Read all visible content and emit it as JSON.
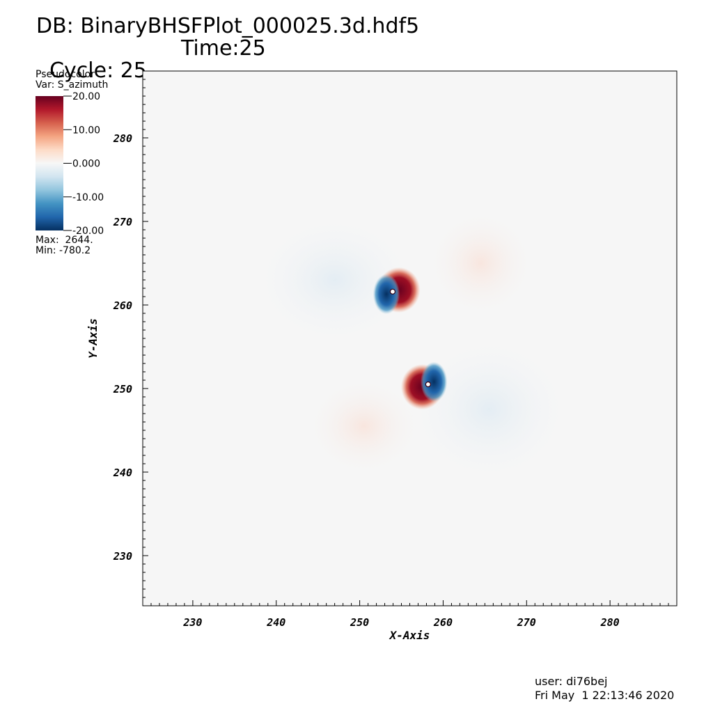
{
  "header": {
    "db_line": "DB: BinaryBHSFPlot_000025.3d.hdf5",
    "cycle": "Cycle: 25",
    "time": "Time:25"
  },
  "legend": {
    "plot_type": "Pseudocolor",
    "variable": "Var: S_azimuth",
    "max": "Max:  2644.",
    "min": "Min: -780.2",
    "colorbar_ticks": [
      "20.00",
      "10.00",
      "0.000",
      "-10.00",
      "-20.00"
    ],
    "colorbar_colors": [
      "#67001f",
      "#b2182b",
      "#d6604d",
      "#f4a582",
      "#fddbc7",
      "#f7f7f7",
      "#d1e5f0",
      "#92c5de",
      "#4393c3",
      "#2166ac",
      "#053061"
    ]
  },
  "chart_data": {
    "type": "heatmap",
    "xlabel": "X-Axis",
    "ylabel": "Y-Axis",
    "xlim": [
      224,
      288
    ],
    "ylim": [
      224,
      288
    ],
    "x_ticks": [
      230,
      240,
      250,
      260,
      270,
      280
    ],
    "y_ticks": [
      230,
      240,
      250,
      260,
      270,
      280
    ],
    "x_tick_labels": [
      "230",
      "240",
      "250",
      "260",
      "270",
      "280"
    ],
    "y_tick_labels": [
      "230",
      "240",
      "250",
      "260",
      "270",
      "280"
    ],
    "colorbar_range": [
      -20,
      20
    ],
    "grid": false,
    "background_color": "#f6f6f6",
    "features": [
      {
        "x": 254.7,
        "y": 261.8,
        "rx": 1.6,
        "ry": 1.7,
        "sign": "positive"
      },
      {
        "x": 253.2,
        "y": 261.3,
        "rx": 1.0,
        "ry": 1.5,
        "sign": "negative"
      },
      {
        "x": 257.5,
        "y": 250.2,
        "rx": 1.6,
        "ry": 1.7,
        "sign": "positive"
      },
      {
        "x": 258.9,
        "y": 250.8,
        "rx": 1.0,
        "ry": 1.5,
        "sign": "negative"
      },
      {
        "x": 247.0,
        "y": 263.0,
        "rx": 10.0,
        "ry": 8.0,
        "sign": "faint-negative"
      },
      {
        "x": 264.5,
        "y": 265.0,
        "rx": 6.5,
        "ry": 6.5,
        "sign": "faint-positive"
      },
      {
        "x": 265.5,
        "y": 247.5,
        "rx": 10.0,
        "ry": 9.0,
        "sign": "faint-negative"
      },
      {
        "x": 250.5,
        "y": 245.5,
        "rx": 7.0,
        "ry": 6.0,
        "sign": "faint-positive"
      }
    ]
  },
  "footer": {
    "user": "user: di76bej",
    "date": "Fri May  1 22:13:46 2020"
  }
}
